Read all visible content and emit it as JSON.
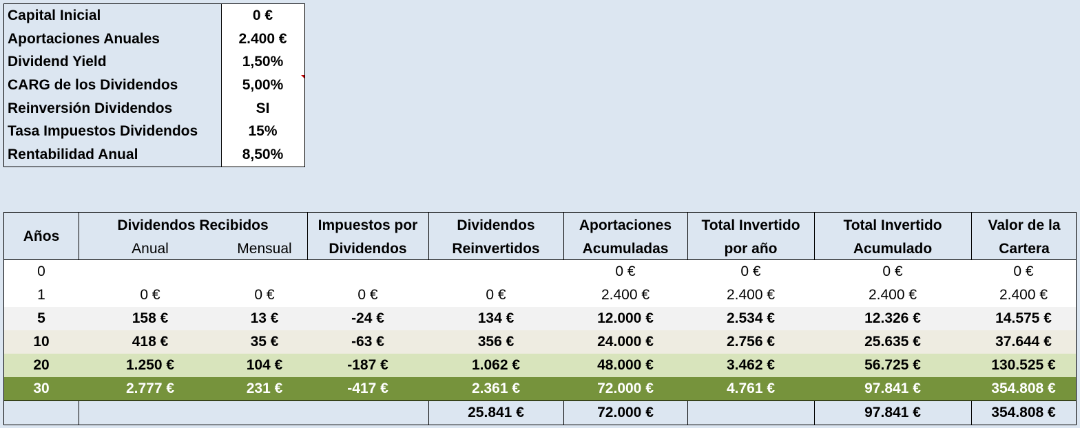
{
  "params": [
    {
      "label": "Capital Inicial",
      "value": "0 €"
    },
    {
      "label": "Aportaciones Anuales",
      "value": "2.400 €"
    },
    {
      "label": "Dividend Yield",
      "value": "1,50%"
    },
    {
      "label": "CARG de los Dividendos",
      "value": "5,00%"
    },
    {
      "label": "Reinversión Dividendos",
      "value": "SI"
    },
    {
      "label": "Tasa Impuestos Dividendos",
      "value": "15%"
    },
    {
      "label": "Rentabilidad Anual",
      "value": "8,50%"
    }
  ],
  "table": {
    "headers": {
      "years": "Años",
      "dividends_received": "Dividendos Recibidos",
      "annual": "Anual",
      "monthly": "Mensual",
      "taxes_1": "Impuestos por",
      "taxes_2": "Dividendos",
      "reinvested_1": "Dividendos",
      "reinvested_2": "Reinvertidos",
      "contributions_1": "Aportaciones",
      "contributions_2": "Acumuladas",
      "invested_year_1": "Total Invertido",
      "invested_year_2": "por año",
      "invested_acc_1": "Total Invertido",
      "invested_acc_2": "Acumulado",
      "portfolio_1": "Valor de la",
      "portfolio_2": "Cartera"
    },
    "rows": [
      {
        "year": "0",
        "annual": "",
        "monthly": "",
        "taxes": "",
        "reinvested": "",
        "contributions": "0 €",
        "invested_year": "0 €",
        "invested_acc": "0 €",
        "portfolio": "0 €",
        "bg": "#ffffff",
        "bold": false,
        "dark": false
      },
      {
        "year": "1",
        "annual": "0 €",
        "monthly": "0 €",
        "taxes": "0 €",
        "reinvested": "0 €",
        "contributions": "2.400 €",
        "invested_year": "2.400 €",
        "invested_acc": "2.400 €",
        "portfolio": "2.400 €",
        "bg": "#ffffff",
        "bold": false,
        "dark": false
      },
      {
        "year": "5",
        "annual": "158 €",
        "monthly": "13 €",
        "taxes": "-24 €",
        "reinvested": "134 €",
        "contributions": "12.000 €",
        "invested_year": "2.534 €",
        "invested_acc": "12.326 €",
        "portfolio": "14.575 €",
        "bg": "#f2f2f2",
        "bold": true,
        "dark": false
      },
      {
        "year": "10",
        "annual": "418 €",
        "monthly": "35 €",
        "taxes": "-63 €",
        "reinvested": "356 €",
        "contributions": "24.000 €",
        "invested_year": "2.756 €",
        "invested_acc": "25.635 €",
        "portfolio": "37.644 €",
        "bg": "#eeece1",
        "bold": true,
        "dark": false
      },
      {
        "year": "20",
        "annual": "1.250 €",
        "monthly": "104 €",
        "taxes": "-187 €",
        "reinvested": "1.062 €",
        "contributions": "48.000 €",
        "invested_year": "3.462 €",
        "invested_acc": "56.725 €",
        "portfolio": "130.525 €",
        "bg": "#d8e4bc",
        "bold": true,
        "dark": false
      },
      {
        "year": "30",
        "annual": "2.777 €",
        "monthly": "231 €",
        "taxes": "-417 €",
        "reinvested": "2.361 €",
        "contributions": "72.000 €",
        "invested_year": "4.761 €",
        "invested_acc": "97.841 €",
        "portfolio": "354.808 €",
        "bg": "#76933c",
        "bold": true,
        "dark": true
      }
    ],
    "totals": {
      "reinvested": "25.841 €",
      "contributions": "72.000 €",
      "invested_acc": "97.841 €",
      "portfolio": "354.808 €"
    }
  }
}
